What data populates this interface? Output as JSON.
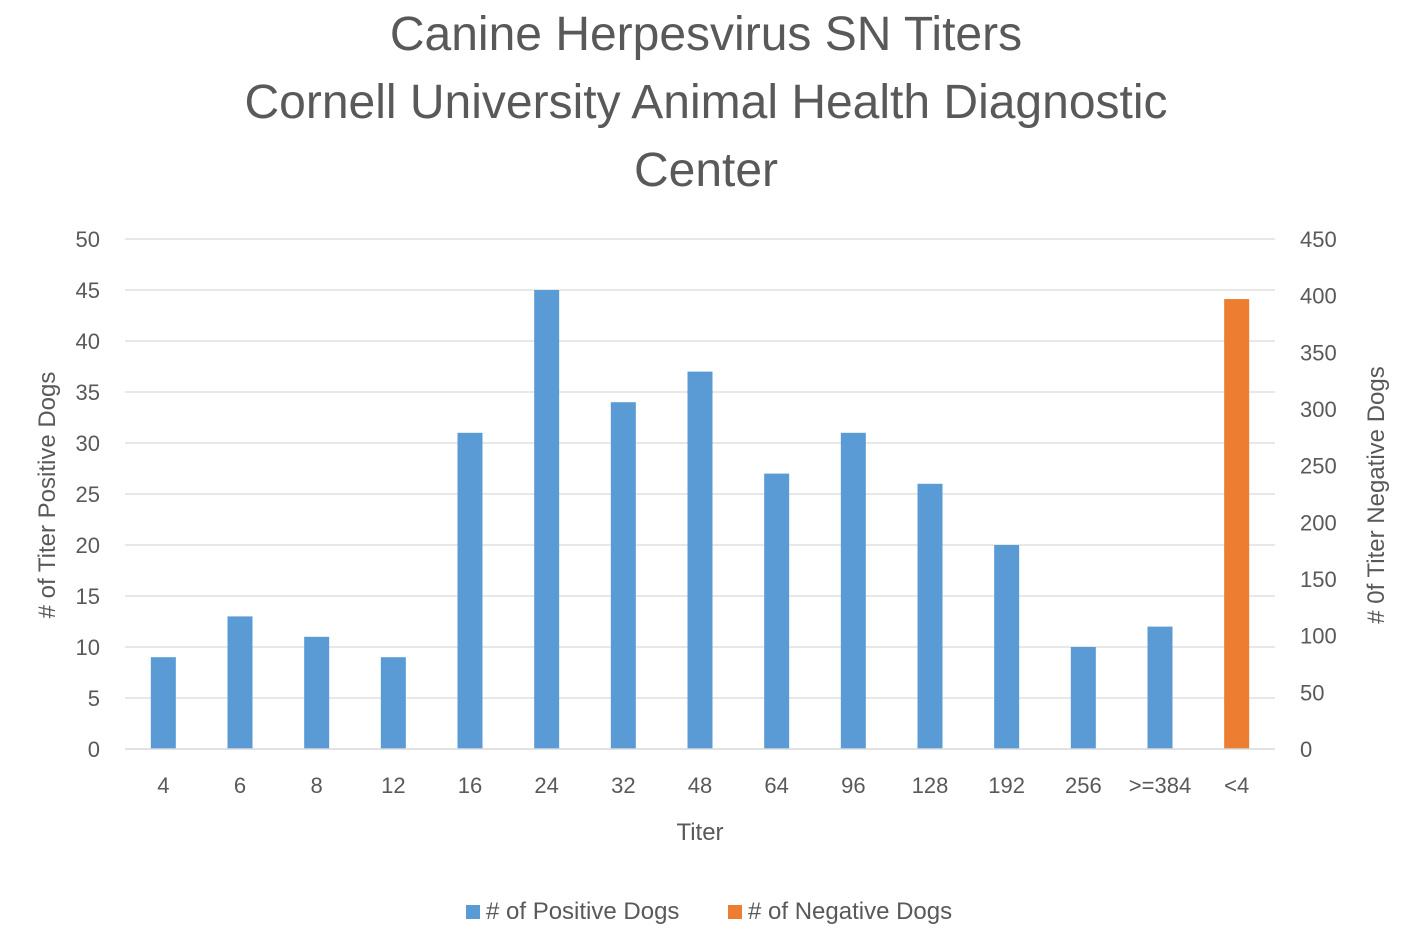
{
  "chart_data": {
    "type": "bar",
    "title_lines": [
      "Canine Herpesvirus SN Titers",
      "Cornell University Animal Health Diagnostic",
      "Center"
    ],
    "xlabel": "Titer",
    "ylabel_left": "# of Titer Positive Dogs",
    "ylabel_right": "# 0f Titer Negative Dogs",
    "ylim_left": [
      0,
      50
    ],
    "ylim_right": [
      0,
      450
    ],
    "yticks_left": [
      "0",
      "5",
      "10",
      "15",
      "20",
      "25",
      "30",
      "35",
      "40",
      "45",
      "50"
    ],
    "yticks_right": [
      "0",
      "50",
      "100",
      "150",
      "200",
      "250",
      "300",
      "350",
      "400",
      "450"
    ],
    "categories": [
      "4",
      "6",
      "8",
      "12",
      "16",
      "24",
      "32",
      "48",
      "64",
      "96",
      "128",
      "192",
      "256",
      ">=384",
      "<4"
    ],
    "grid": true,
    "legend_position": "bottom",
    "series": [
      {
        "name": "# of Positive Dogs",
        "axis": "left",
        "color": "#5b9bd5",
        "values": [
          9,
          13,
          11,
          9,
          31,
          45,
          34,
          37,
          27,
          31,
          26,
          20,
          10,
          12,
          null
        ]
      },
      {
        "name": "# of Negative Dogs",
        "axis": "right",
        "color": "#ed7d31",
        "values": [
          null,
          null,
          null,
          null,
          null,
          null,
          null,
          null,
          null,
          null,
          null,
          null,
          null,
          null,
          397
        ]
      }
    ]
  },
  "colors": {
    "text": "#595959",
    "grid": "#d9d9d9"
  }
}
